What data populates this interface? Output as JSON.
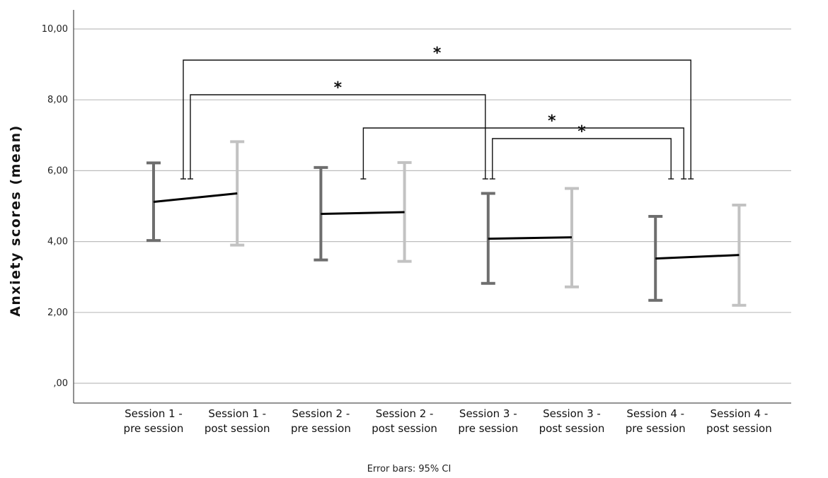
{
  "chart_data": {
    "type": "line",
    "ylabel": "Anxiety scores (mean)",
    "xlabel": "",
    "footnote": "Error bars: 95% CI",
    "ylim": [
      0,
      10.5
    ],
    "yticks": [
      0,
      2,
      4,
      6,
      8,
      10
    ],
    "ytick_labels": [
      ",00",
      "2,00",
      "4,00",
      "6,00",
      "8,00",
      "10,00"
    ],
    "grid": "horizontal",
    "categories": [
      [
        "Session 1 -",
        "pre session"
      ],
      [
        "Session 1 -",
        "post session"
      ],
      [
        "Session 2 -",
        "pre session"
      ],
      [
        "Session 2 -",
        "post session"
      ],
      [
        "Session 3 -",
        "pre session"
      ],
      [
        "Session 3 -",
        "post session"
      ],
      [
        "Session 4 -",
        "pre session"
      ],
      [
        "Session 4 -",
        "post session"
      ]
    ],
    "means": [
      5.12,
      5.36,
      4.78,
      4.83,
      4.08,
      4.12,
      3.52,
      3.62
    ],
    "ci_lower": [
      4.03,
      3.9,
      3.48,
      3.44,
      2.82,
      2.72,
      2.34,
      2.2
    ],
    "ci_upper": [
      6.22,
      6.82,
      6.09,
      6.23,
      5.36,
      5.5,
      4.71,
      5.03
    ],
    "session_lines": [
      [
        0,
        1
      ],
      [
        2,
        3
      ],
      [
        4,
        5
      ],
      [
        6,
        7
      ]
    ],
    "colors": {
      "pre": "#6e6e6e",
      "post": "#c2c2c2",
      "line": "#000000",
      "grid": "#bdbdbd",
      "axis": "#555555"
    },
    "significance": [
      {
        "from": 0,
        "to": 6,
        "label": "*"
      },
      {
        "from": 0,
        "to": 4,
        "label": "*"
      },
      {
        "from": 2,
        "to": 6,
        "label": "*"
      },
      {
        "from": 4,
        "to": 6,
        "label": "*"
      }
    ]
  }
}
